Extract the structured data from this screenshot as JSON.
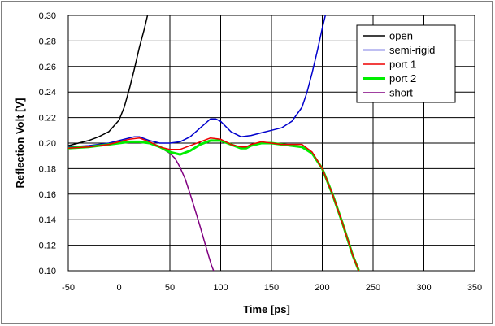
{
  "chart_data": {
    "type": "line",
    "title": "",
    "xlabel": "Time [ps]",
    "ylabel": "Reflection Volt [V]",
    "xlim": [
      -50,
      350
    ],
    "ylim": [
      0.1,
      0.3
    ],
    "xticks": [
      -50,
      0,
      50,
      100,
      150,
      200,
      250,
      300,
      350
    ],
    "yticks": [
      0.1,
      0.12,
      0.14,
      0.16,
      0.18,
      0.2,
      0.22,
      0.24,
      0.26,
      0.28,
      0.3
    ],
    "xtick_labels": [
      "-50",
      "0",
      "50",
      "100",
      "150",
      "200",
      "250",
      "300",
      "350"
    ],
    "ytick_labels": [
      "0.10",
      "0.12",
      "0.14",
      "0.16",
      "0.18",
      "0.20",
      "0.22",
      "0.24",
      "0.26",
      "0.28",
      "0.30"
    ],
    "grid": true,
    "legend_position": "top-right",
    "series": [
      {
        "name": "open",
        "color": "#000000",
        "width": 1.5,
        "x": [
          -50,
          -40,
          -30,
          -20,
          -10,
          0,
          5,
          10,
          15,
          20,
          25,
          28
        ],
        "y": [
          0.198,
          0.2,
          0.202,
          0.205,
          0.209,
          0.218,
          0.228,
          0.242,
          0.258,
          0.275,
          0.29,
          0.3
        ]
      },
      {
        "name": "semi-rigid",
        "color": "#0000cc",
        "width": 1.5,
        "x": [
          -50,
          -30,
          -10,
          0,
          10,
          15,
          20,
          30,
          40,
          50,
          60,
          70,
          80,
          90,
          95,
          100,
          110,
          120,
          130,
          140,
          150,
          160,
          170,
          180,
          185,
          190,
          195,
          200,
          203
        ],
        "y": [
          0.197,
          0.198,
          0.2,
          0.202,
          0.204,
          0.205,
          0.205,
          0.202,
          0.2,
          0.2,
          0.201,
          0.205,
          0.212,
          0.219,
          0.219,
          0.217,
          0.209,
          0.205,
          0.206,
          0.208,
          0.21,
          0.212,
          0.217,
          0.228,
          0.24,
          0.255,
          0.272,
          0.29,
          0.3
        ]
      },
      {
        "name": "port 1",
        "color": "#ee0000",
        "width": 1.5,
        "x": [
          -50,
          -30,
          -10,
          0,
          10,
          20,
          30,
          40,
          50,
          60,
          70,
          80,
          90,
          100,
          110,
          120,
          125,
          130,
          140,
          150,
          160,
          170,
          180,
          190,
          200,
          210,
          220,
          230,
          236
        ],
        "y": [
          0.196,
          0.197,
          0.199,
          0.201,
          0.203,
          0.204,
          0.201,
          0.197,
          0.195,
          0.195,
          0.198,
          0.201,
          0.204,
          0.203,
          0.199,
          0.197,
          0.197,
          0.199,
          0.201,
          0.2,
          0.199,
          0.199,
          0.199,
          0.193,
          0.18,
          0.16,
          0.137,
          0.112,
          0.1
        ]
      },
      {
        "name": "port 2",
        "color": "#00ee00",
        "width": 3,
        "x": [
          -50,
          -30,
          -10,
          0,
          10,
          20,
          30,
          40,
          50,
          60,
          70,
          80,
          90,
          100,
          110,
          120,
          125,
          130,
          140,
          150,
          160,
          170,
          180,
          190,
          200,
          210,
          220,
          230,
          236
        ],
        "y": [
          0.196,
          0.197,
          0.199,
          0.2,
          0.201,
          0.201,
          0.2,
          0.197,
          0.193,
          0.191,
          0.194,
          0.199,
          0.202,
          0.202,
          0.199,
          0.196,
          0.196,
          0.198,
          0.2,
          0.2,
          0.199,
          0.198,
          0.197,
          0.192,
          0.18,
          0.16,
          0.137,
          0.112,
          0.1
        ]
      },
      {
        "name": "short",
        "color": "#800080",
        "width": 1.5,
        "x": [
          -50,
          -30,
          -10,
          0,
          10,
          20,
          30,
          40,
          50,
          55,
          60,
          65,
          70,
          75,
          80,
          85,
          88,
          91,
          93
        ],
        "y": [
          0.196,
          0.197,
          0.199,
          0.2,
          0.201,
          0.201,
          0.2,
          0.197,
          0.192,
          0.188,
          0.181,
          0.172,
          0.16,
          0.147,
          0.134,
          0.12,
          0.112,
          0.104,
          0.1
        ]
      }
    ]
  }
}
